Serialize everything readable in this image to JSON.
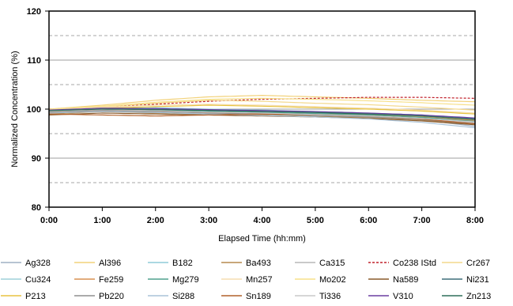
{
  "chart_data": {
    "type": "line",
    "xlabel": "Elapsed Time (hh:mm)",
    "ylabel": "Normalized Concentration (%)",
    "ylim": [
      80,
      120
    ],
    "yticks": [
      80,
      90,
      100,
      110,
      120
    ],
    "xlim": [
      0,
      8
    ],
    "xticks": [
      "0:00",
      "1:00",
      "2:00",
      "3:00",
      "4:00",
      "5:00",
      "6:00",
      "7:00",
      "8:00"
    ],
    "solid_gridlines": [
      90,
      100,
      110
    ],
    "dashed_reference_lines": [
      85,
      95,
      105,
      115
    ],
    "legend_placement": "bottom",
    "series": [
      {
        "name": "Ag328",
        "color": "#9fb0c4",
        "style": "solid",
        "x": [
          0,
          1,
          2,
          3,
          4,
          5,
          6,
          7,
          8
        ],
        "values": [
          99.5,
          99.8,
          99.6,
          99.2,
          99.0,
          98.8,
          98.5,
          97.8,
          96.5
        ]
      },
      {
        "name": "Al396",
        "color": "#f2d27a",
        "style": "solid",
        "x": [
          0,
          1,
          2,
          3,
          4,
          5,
          6,
          7,
          8
        ],
        "values": [
          100.0,
          100.8,
          101.8,
          102.5,
          102.8,
          102.5,
          102.2,
          101.8,
          101.5
        ]
      },
      {
        "name": "B182",
        "color": "#8fcbd8",
        "style": "solid",
        "x": [
          0,
          1,
          2,
          3,
          4,
          5,
          6,
          7,
          8
        ],
        "values": [
          99.8,
          100.2,
          100.3,
          100.0,
          99.8,
          99.5,
          99.2,
          98.8,
          98.0
        ]
      },
      {
        "name": "Ba493",
        "color": "#b58a4e",
        "style": "solid",
        "x": [
          0,
          1,
          2,
          3,
          4,
          5,
          6,
          7,
          8
        ],
        "values": [
          99.0,
          99.5,
          99.2,
          99.0,
          98.8,
          98.5,
          98.3,
          97.8,
          97.0
        ]
      },
      {
        "name": "Ca315",
        "color": "#b7b7b7",
        "style": "solid",
        "x": [
          0,
          1,
          2,
          3,
          4,
          5,
          6,
          7,
          8
        ],
        "values": [
          99.5,
          99.8,
          99.5,
          99.3,
          99.0,
          98.7,
          98.4,
          97.9,
          97.2
        ]
      },
      {
        "name": "Co238 IStd",
        "color": "#c0202a",
        "style": "dashed",
        "x": [
          0,
          1,
          2,
          3,
          4,
          5,
          6,
          7,
          8
        ],
        "values": [
          100.0,
          100.5,
          101.0,
          101.6,
          102.0,
          102.2,
          102.4,
          102.4,
          102.2
        ]
      },
      {
        "name": "Cr267",
        "color": "#f3d88c",
        "style": "solid",
        "x": [
          0,
          1,
          2,
          3,
          4,
          5,
          6,
          7,
          8
        ],
        "values": [
          99.8,
          100.5,
          101.2,
          101.8,
          101.6,
          101.2,
          100.9,
          100.4,
          99.8
        ]
      },
      {
        "name": "Cu324",
        "color": "#9ed0da",
        "style": "solid",
        "x": [
          0,
          1,
          2,
          3,
          4,
          5,
          6,
          7,
          8
        ],
        "values": [
          99.7,
          100.0,
          99.9,
          99.6,
          99.4,
          99.2,
          98.9,
          98.4,
          97.6
        ]
      },
      {
        "name": "Fe259",
        "color": "#d89050",
        "style": "solid",
        "x": [
          0,
          1,
          2,
          3,
          4,
          5,
          6,
          7,
          8
        ],
        "values": [
          99.3,
          99.7,
          99.5,
          99.3,
          99.2,
          99.0,
          98.8,
          98.4,
          97.7
        ]
      },
      {
        "name": "Mg279",
        "color": "#4fa08d",
        "style": "solid",
        "x": [
          0,
          1,
          2,
          3,
          4,
          5,
          6,
          7,
          8
        ],
        "values": [
          99.6,
          100.0,
          99.8,
          99.5,
          99.3,
          99.1,
          98.8,
          98.3,
          97.5
        ]
      },
      {
        "name": "Mn257",
        "color": "#f5ddb0",
        "style": "solid",
        "x": [
          0,
          1,
          2,
          3,
          4,
          5,
          6,
          7,
          8
        ],
        "values": [
          99.9,
          100.4,
          100.8,
          101.0,
          100.8,
          100.5,
          100.2,
          99.8,
          99.2
        ]
      },
      {
        "name": "Mo202",
        "color": "#f7e08a",
        "style": "solid",
        "x": [
          0,
          1,
          2,
          3,
          4,
          5,
          6,
          7,
          8
        ],
        "values": [
          100.0,
          100.6,
          101.4,
          102.0,
          102.2,
          102.0,
          101.7,
          101.3,
          100.8
        ]
      },
      {
        "name": "Na589",
        "color": "#8a5a2a",
        "style": "solid",
        "x": [
          0,
          1,
          2,
          3,
          4,
          5,
          6,
          7,
          8
        ],
        "values": [
          98.8,
          99.2,
          99.0,
          98.8,
          98.6,
          98.4,
          98.1,
          97.6,
          96.8
        ]
      },
      {
        "name": "Ni231",
        "color": "#3f6f7a",
        "style": "solid",
        "x": [
          0,
          1,
          2,
          3,
          4,
          5,
          6,
          7,
          8
        ],
        "values": [
          99.6,
          100.1,
          100.0,
          99.8,
          99.6,
          99.4,
          99.1,
          98.7,
          98.0
        ]
      },
      {
        "name": "P213",
        "color": "#e8c440",
        "style": "solid",
        "x": [
          0,
          1,
          2,
          3,
          4,
          5,
          6,
          7,
          8
        ],
        "values": [
          99.5,
          100.2,
          100.5,
          100.8,
          100.6,
          100.3,
          100.0,
          99.6,
          99.0
        ]
      },
      {
        "name": "Pb220",
        "color": "#8f8f8f",
        "style": "solid",
        "x": [
          0,
          1,
          2,
          3,
          4,
          5,
          6,
          7,
          8
        ],
        "values": [
          99.4,
          99.7,
          99.5,
          99.2,
          99.0,
          98.7,
          98.4,
          97.9,
          97.0
        ]
      },
      {
        "name": "Si288",
        "color": "#aac3d8",
        "style": "solid",
        "x": [
          0,
          1,
          2,
          3,
          4,
          5,
          6,
          7,
          8
        ],
        "values": [
          99.2,
          99.5,
          99.3,
          99.0,
          98.7,
          98.4,
          98.0,
          97.3,
          96.2
        ]
      },
      {
        "name": "Sn189",
        "color": "#b0602a",
        "style": "solid",
        "x": [
          0,
          1,
          2,
          3,
          4,
          5,
          6,
          7,
          8
        ],
        "values": [
          99.0,
          98.8,
          98.6,
          98.8,
          99.0,
          98.9,
          98.6,
          98.0,
          97.0
        ]
      },
      {
        "name": "Ti336",
        "color": "#c8c8c8",
        "style": "solid",
        "x": [
          0,
          1,
          2,
          3,
          4,
          5,
          6,
          7,
          8
        ],
        "values": [
          99.6,
          99.9,
          99.7,
          99.4,
          99.2,
          98.9,
          98.6,
          98.1,
          97.4
        ]
      },
      {
        "name": "V310",
        "color": "#6b3fa0",
        "style": "solid",
        "x": [
          0,
          1,
          2,
          3,
          4,
          5,
          6,
          7,
          8
        ],
        "values": [
          99.8,
          100.2,
          100.1,
          99.9,
          99.7,
          99.5,
          99.2,
          98.8,
          98.2
        ]
      },
      {
        "name": "Zn213",
        "color": "#2f6e5a",
        "style": "solid",
        "x": [
          0,
          1,
          2,
          3,
          4,
          5,
          6,
          7,
          8
        ],
        "values": [
          99.7,
          100.0,
          99.9,
          99.7,
          99.5,
          99.3,
          99.0,
          98.6,
          97.9
        ]
      }
    ]
  }
}
